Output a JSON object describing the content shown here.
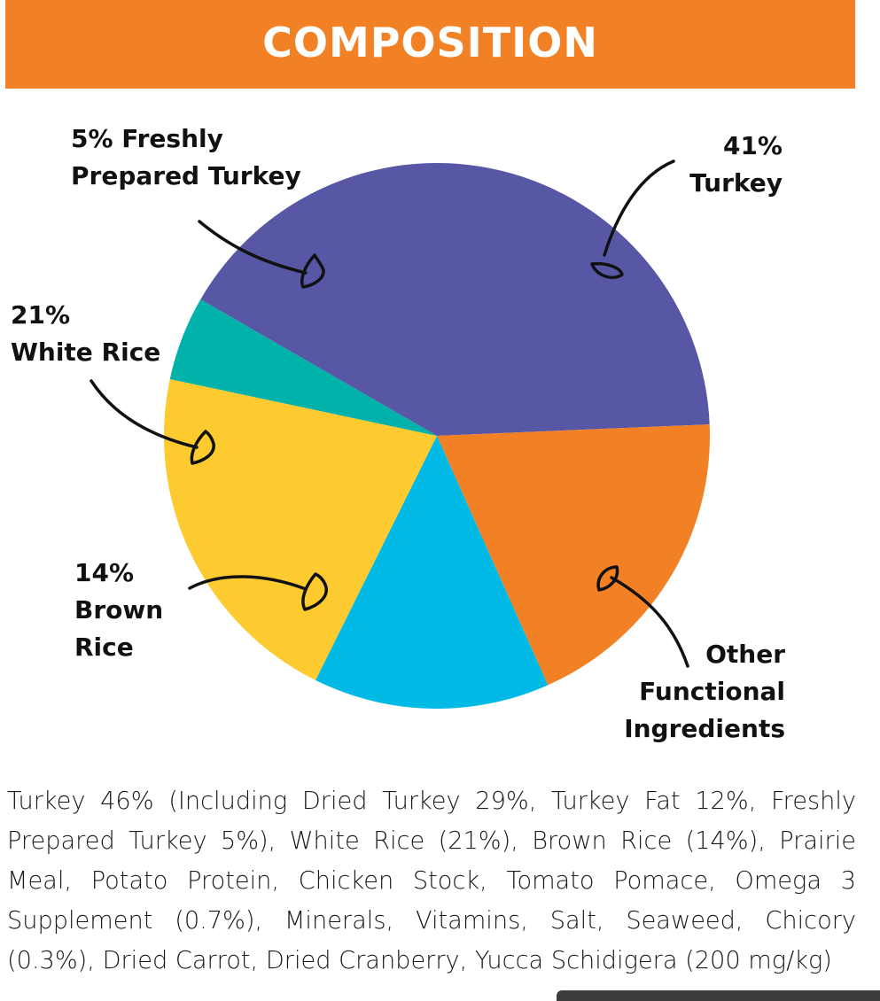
{
  "header": {
    "title": "COMPOSITION",
    "color": "#F28125"
  },
  "chart_data": {
    "type": "pie",
    "title": "COMPOSITION",
    "slices": [
      {
        "key": "turkey",
        "label_lines": [
          "41%",
          "Turkey"
        ],
        "value": 41,
        "color": "#5857A6"
      },
      {
        "key": "other",
        "label_lines": [
          "Other",
          "Functional",
          "Ingredients"
        ],
        "value": 19,
        "color": "#F28125"
      },
      {
        "key": "brown",
        "label_lines": [
          "14%",
          "Brown",
          "Rice"
        ],
        "value": 14,
        "color": "#00B9E5"
      },
      {
        "key": "white",
        "label_lines": [
          "21%",
          "White Rice"
        ],
        "value": 21,
        "color": "#FDCA30"
      },
      {
        "key": "fresh",
        "label_lines": [
          "5% Freshly",
          "Prepared Turkey"
        ],
        "value": 5,
        "color": "#00B2AA"
      }
    ]
  },
  "ingredients_text": "Turkey 46% (Including Dried Turkey 29%, Turkey Fat 12%, Freshly Prepared Turkey 5%), White Rice (21%), Brown Rice (14%), Prairie Meal, Potato Protein, Chicken Stock, Tomato Pomace, Omega 3 Supplement (0.7%), Minerals, Vitamins, Salt, Seaweed, Chicory (0.3%), Dried Carrot, Dried Cranberry, Yucca Schidigera (200 mg/kg)"
}
